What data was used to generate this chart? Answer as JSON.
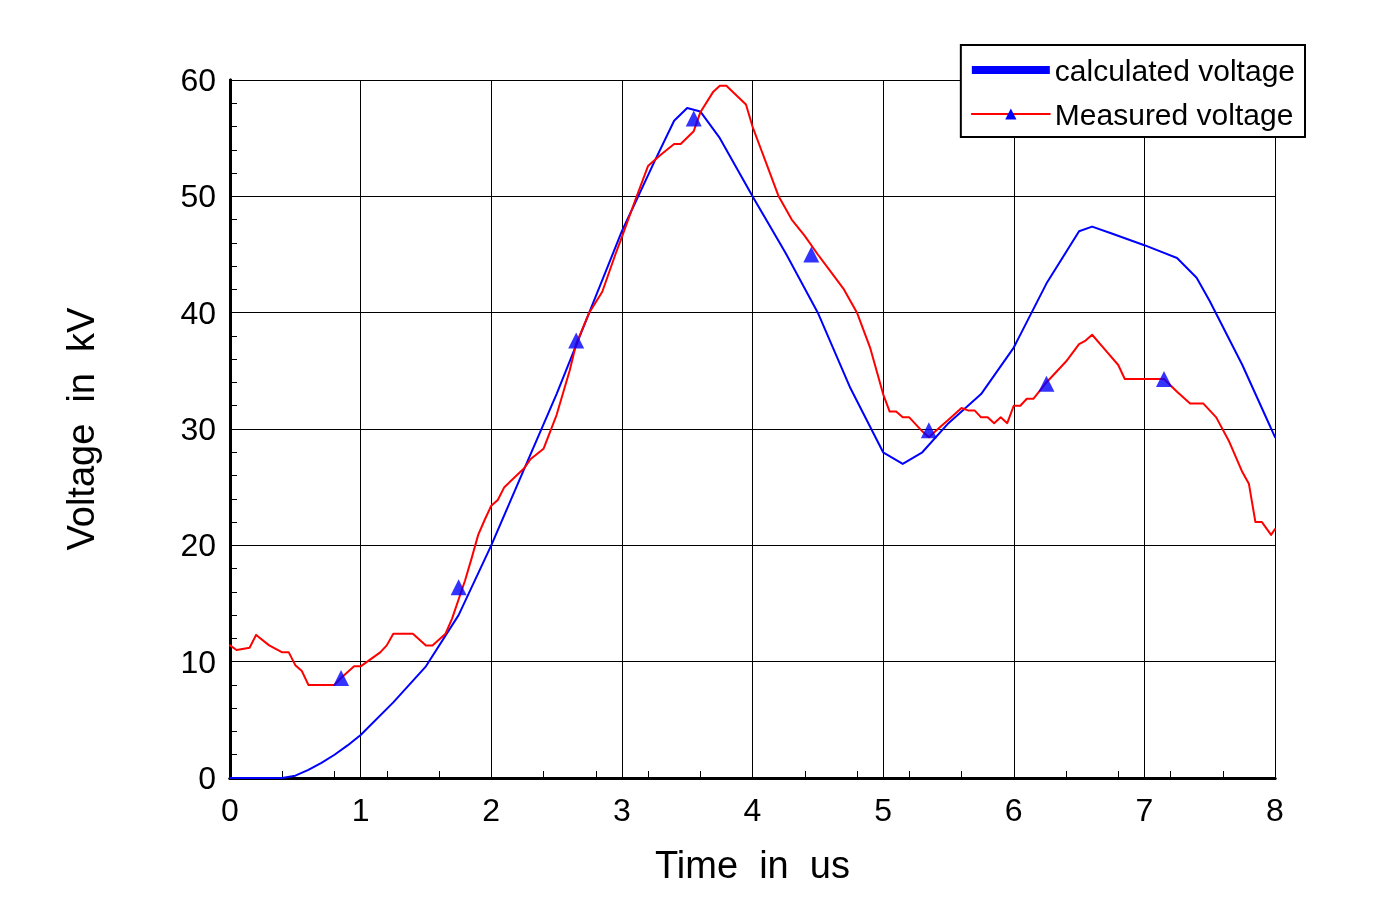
{
  "chart_data": {
    "type": "line",
    "xlabel": "Time  in  us",
    "ylabel": "Voltage  in  kV",
    "xlim": [
      0,
      8
    ],
    "xticks": [
      0,
      1,
      2,
      3,
      4,
      5,
      6,
      7,
      8
    ],
    "ylim": [
      0,
      60
    ],
    "yticks": [
      0,
      10,
      20,
      30,
      40,
      50,
      60
    ],
    "grid": true,
    "legend": "top right",
    "series": [
      {
        "name": "calculated voltage",
        "color": "#0000ff",
        "marker": "none",
        "x": [
          0,
          0.4,
          0.5,
          0.6,
          0.7,
          0.8,
          0.9,
          1.0,
          1.25,
          1.5,
          1.75,
          2.0,
          2.25,
          2.5,
          2.75,
          3.0,
          3.25,
          3.4,
          3.5,
          3.6,
          3.75,
          4.0,
          4.25,
          4.5,
          4.75,
          5.0,
          5.15,
          5.3,
          5.5,
          5.75,
          6.0,
          6.25,
          6.5,
          6.6,
          6.75,
          7.0,
          7.25,
          7.4,
          7.5,
          7.75,
          8.0
        ],
        "values": [
          0,
          0,
          0.2,
          0.7,
          1.3,
          2.0,
          2.8,
          3.7,
          6.5,
          9.6,
          14,
          20,
          26.5,
          33,
          40,
          47,
          53,
          56.5,
          57.6,
          57.3,
          55,
          50,
          45.2,
          40,
          33.5,
          28,
          27,
          28,
          30.5,
          33,
          37,
          42.5,
          47,
          47.4,
          46.8,
          45.8,
          44.7,
          43,
          41,
          35.5,
          29.3
        ]
      },
      {
        "name": "Measured voltage",
        "color": "#ff0000",
        "marker": "none",
        "x": [
          0,
          0.05,
          0.15,
          0.2,
          0.3,
          0.4,
          0.45,
          0.5,
          0.55,
          0.6,
          0.8,
          0.85,
          0.95,
          1.0,
          1.15,
          1.2,
          1.25,
          1.4,
          1.5,
          1.55,
          1.65,
          1.7,
          1.8,
          1.85,
          1.9,
          1.95,
          2.0,
          2.05,
          2.1,
          2.25,
          2.3,
          2.4,
          2.5,
          2.6,
          2.65,
          2.75,
          2.85,
          2.95,
          3.0,
          3.1,
          3.2,
          3.3,
          3.4,
          3.45,
          3.55,
          3.6,
          3.7,
          3.75,
          3.8,
          3.95,
          4.0,
          4.1,
          4.2,
          4.3,
          4.4,
          4.5,
          4.6,
          4.7,
          4.8,
          4.9,
          5.0,
          5.05,
          5.1,
          5.15,
          5.2,
          5.3,
          5.35,
          5.4,
          5.5,
          5.6,
          5.65,
          5.7,
          5.75,
          5.8,
          5.85,
          5.9,
          5.95,
          6.0,
          6.05,
          6.1,
          6.15,
          6.25,
          6.3,
          6.4,
          6.5,
          6.55,
          6.6,
          6.7,
          6.8,
          6.85,
          7.0,
          7.15,
          7.25,
          7.35,
          7.45,
          7.55,
          7.65,
          7.75,
          7.8,
          7.85,
          7.9,
          7.97,
          8.0
        ],
        "values": [
          11.4,
          11,
          11.2,
          12.3,
          11.4,
          10.8,
          10.8,
          9.7,
          9.2,
          8,
          8,
          8.6,
          9.6,
          9.6,
          10.8,
          11.4,
          12.4,
          12.4,
          11.4,
          11.4,
          12.4,
          13.7,
          17,
          18.9,
          20.9,
          22.2,
          23.4,
          23.9,
          25,
          26.6,
          27.4,
          28.3,
          31.2,
          35,
          37.3,
          40,
          41.8,
          45,
          46.5,
          49.6,
          52.6,
          53.6,
          54.5,
          54.5,
          55.6,
          57.2,
          59,
          59.5,
          59.5,
          57.9,
          56,
          53,
          50,
          48,
          46.6,
          45,
          43.5,
          42,
          40,
          37,
          33,
          31.5,
          31.5,
          31,
          31,
          29.8,
          29.3,
          29.8,
          30.8,
          31.8,
          31.6,
          31.6,
          31,
          31,
          30.5,
          31,
          30.5,
          32,
          32,
          32.6,
          32.6,
          34,
          34.6,
          35.8,
          37.3,
          37.6,
          38.1,
          36.8,
          35.5,
          34.3,
          34.3,
          34.3,
          33.2,
          32.2,
          32.2,
          31,
          28.9,
          26.3,
          25.3,
          22,
          22,
          20.9,
          21.4
        ]
      },
      {
        "type": "scatter",
        "color": "#0000ff",
        "marker": "triangle",
        "x": [
          0.85,
          1.75,
          2.65,
          3.55,
          4.45,
          5.35,
          6.25,
          7.15
        ],
        "values": [
          8.6,
          16.4,
          37.6,
          56.7,
          45,
          29.9,
          33.9,
          34.3
        ]
      }
    ]
  }
}
